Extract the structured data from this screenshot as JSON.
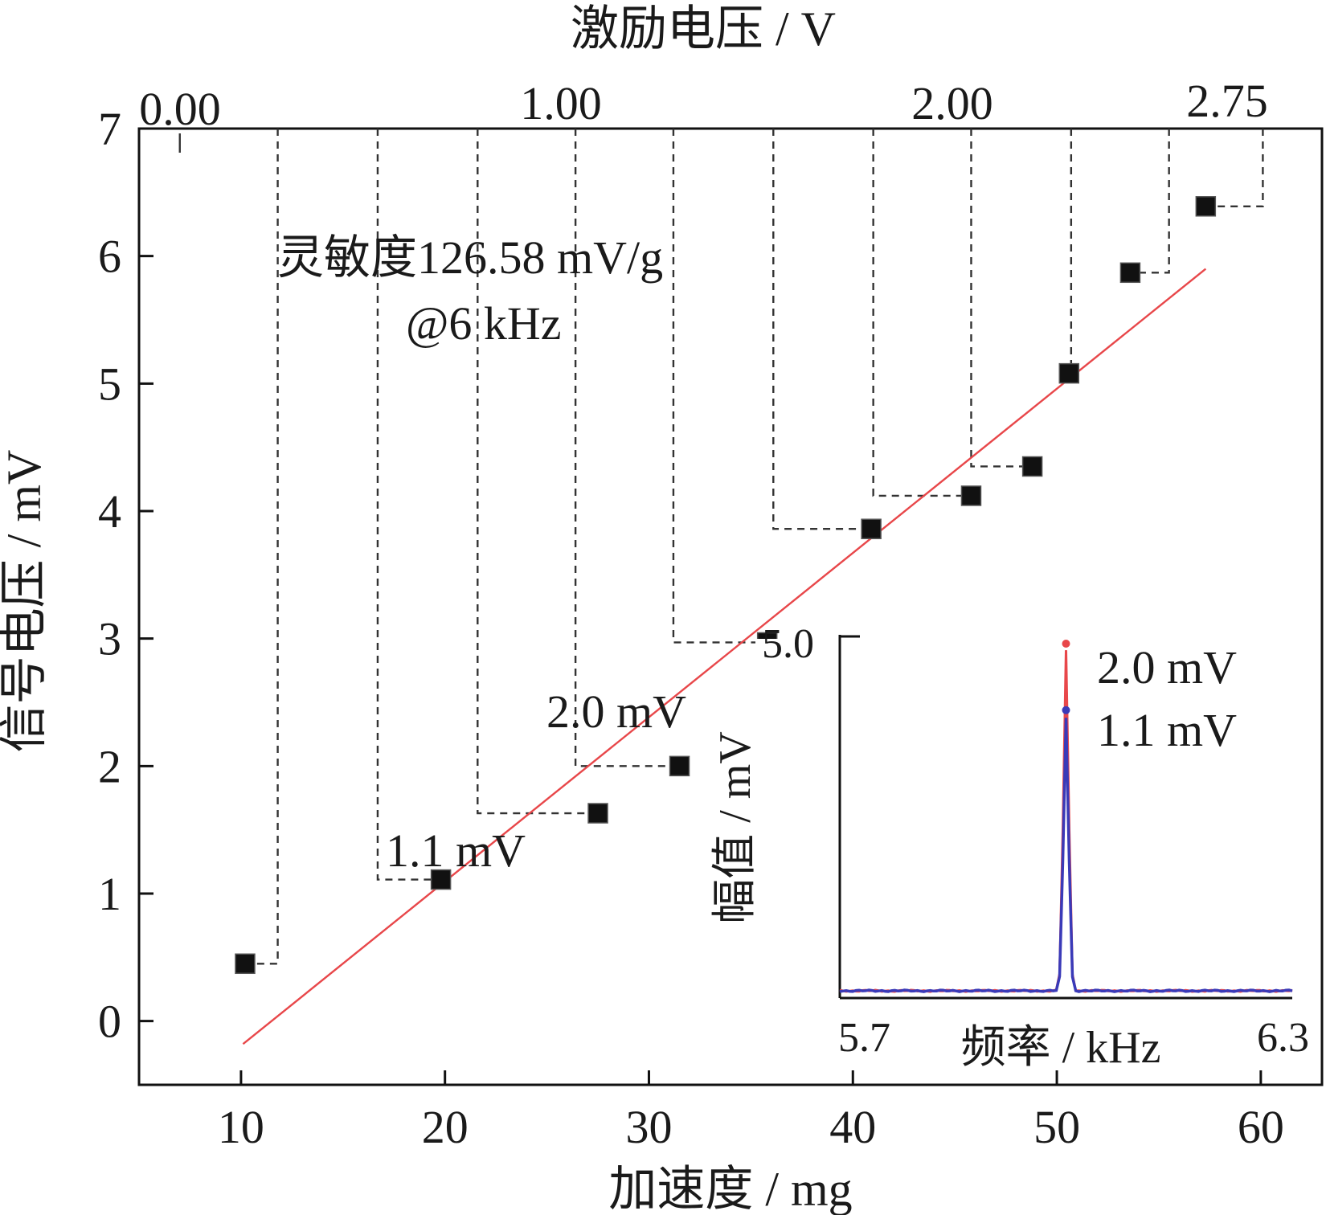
{
  "chart_data": {
    "type": "scatter",
    "xlabel": "加速度 / mg",
    "ylabel": "信号电压 / mV",
    "x2label": "激励电压 / V",
    "xlim": [
      5,
      63
    ],
    "ylim": [
      -0.5,
      7
    ],
    "x_ticks": [
      10,
      20,
      30,
      40,
      50,
      60
    ],
    "y_ticks": [
      0,
      1,
      2,
      3,
      4,
      5,
      6,
      7
    ],
    "x2_ticks": [
      "0.00",
      "1.00",
      "2.00",
      "2.75"
    ],
    "series": [
      {
        "x": [
          10.2,
          19.8,
          27.5,
          31.5,
          35.8,
          40.9,
          45.8,
          48.8,
          50.6,
          53.6,
          57.3
        ],
        "y": [
          0.45,
          1.11,
          1.63,
          2.0,
          2.97,
          3.86,
          4.12,
          4.35,
          5.08,
          5.87,
          6.39
        ],
        "color": "#111111",
        "marker": "square"
      }
    ],
    "fit_line": {
      "x": [
        10.1,
        57.3
      ],
      "y": [
        -0.18,
        5.9
      ],
      "color": "#e8474a"
    },
    "steps_x": [
      11.8,
      16.7,
      21.6,
      26.4,
      31.2,
      36.1,
      41.0,
      45.8,
      50.7,
      55.5,
      60.1
    ],
    "steps_y": [
      0.45,
      1.11,
      1.63,
      2.0,
      2.97,
      3.86,
      4.12,
      4.35,
      5.08,
      5.87,
      6.39
    ],
    "annotations": {
      "sensitivity": "灵敏度126.58 mV/g",
      "frequency": "@6 kHz",
      "low_label": "1.1 mV",
      "high_label": "2.0 mV"
    },
    "inset": {
      "type": "line",
      "xlabel": "频率 / kHz",
      "ylabel": "幅值 / mV",
      "x_ticks": [
        "5.7",
        "6.3"
      ],
      "y_tick": "5.0",
      "xlim": [
        5.7,
        6.3
      ],
      "ylim": [
        0,
        5.0
      ],
      "peak_x": 6.0,
      "series": [
        {
          "name": "2.0 mV",
          "peak": 2.0,
          "color": "#e8474a"
        },
        {
          "name": "1.1 mV",
          "peak": 1.1,
          "color": "#3a3ab8"
        }
      ]
    }
  }
}
